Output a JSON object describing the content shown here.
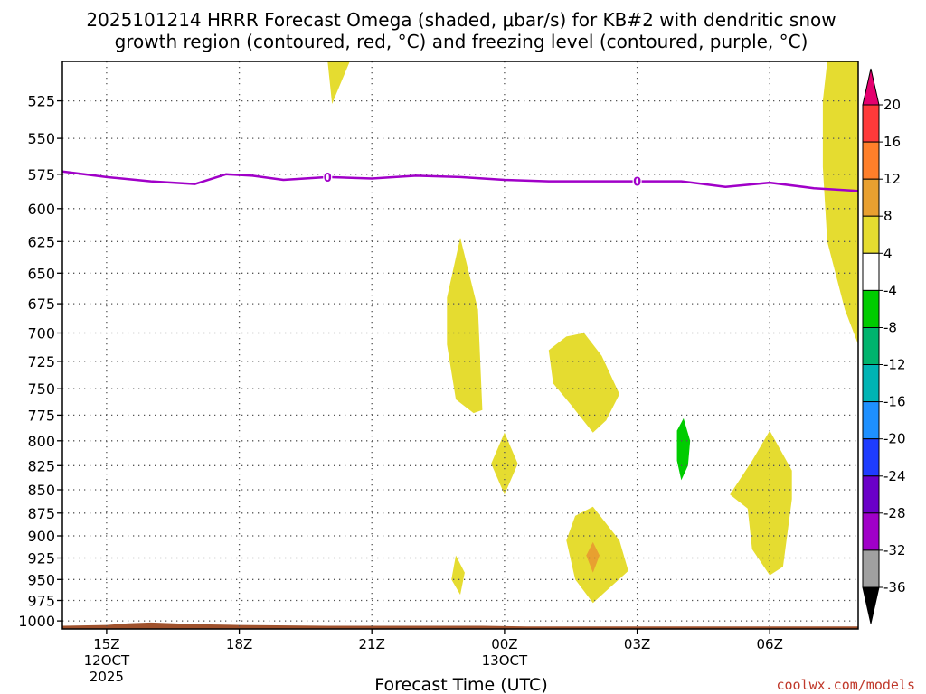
{
  "chart_data": {
    "type": "contour",
    "title_line1": "2025101214 HRRR Forecast Omega (shaded, μbar/s) for KB#2 with dendritic snow",
    "title_line2": "growth region (contoured, red, °C) and freezing level (contoured, purple, °C)",
    "xlabel": "Forecast Time (UTC)",
    "credit": "coolwx.com/models",
    "x_ticks": [
      {
        "hour": 15,
        "label": "15Z",
        "sub1": "12OCT",
        "sub2": "2025"
      },
      {
        "hour": 18,
        "label": "18Z",
        "sub1": "",
        "sub2": ""
      },
      {
        "hour": 21,
        "label": "21Z",
        "sub1": "",
        "sub2": ""
      },
      {
        "hour": 24,
        "label": "00Z",
        "sub1": "13OCT",
        "sub2": ""
      },
      {
        "hour": 27,
        "label": "03Z",
        "sub1": "",
        "sub2": ""
      },
      {
        "hour": 30,
        "label": "06Z",
        "sub1": "",
        "sub2": ""
      }
    ],
    "x_range": [
      14,
      32
    ],
    "y_ticks": [
      "525",
      "550",
      "575",
      "600",
      "625",
      "650",
      "675",
      "700",
      "725",
      "750",
      "775",
      "800",
      "825",
      "850",
      "875",
      "900",
      "925",
      "950",
      "975",
      "1000"
    ],
    "y_values": [
      525,
      550,
      575,
      600,
      625,
      650,
      675,
      700,
      725,
      750,
      775,
      800,
      825,
      850,
      875,
      900,
      925,
      950,
      975,
      1000
    ],
    "y_range_hpa": [
      500,
      1010
    ],
    "y_scale": "log-pressure",
    "grid": true,
    "colorbar": {
      "labels": [
        "20",
        "16",
        "12",
        "8",
        "4",
        "-4",
        "-8",
        "-12",
        "-16",
        "-20",
        "-24",
        "-28",
        "-32",
        "-36"
      ],
      "colors": [
        "#e4006e",
        "#ff3a3a",
        "#ff7f2a",
        "#e8a030",
        "#e5dc30",
        "#ffffff",
        "#00cc00",
        "#00b46e",
        "#00b4b4",
        "#1e90ff",
        "#1e3cff",
        "#6a00c8",
        "#a000c8",
        "#a0a0a0",
        "#000000"
      ]
    },
    "freezing_level": {
      "label": "0",
      "color": "#a000c8",
      "points": [
        [
          14.0,
          573
        ],
        [
          15.0,
          577
        ],
        [
          16.0,
          580
        ],
        [
          17.0,
          582
        ],
        [
          17.7,
          575
        ],
        [
          18.3,
          576
        ],
        [
          19.0,
          579
        ],
        [
          20.0,
          577
        ],
        [
          21.0,
          578
        ],
        [
          22.0,
          576
        ],
        [
          23.0,
          577
        ],
        [
          24.0,
          579
        ],
        [
          25.0,
          580
        ],
        [
          26.0,
          580
        ],
        [
          27.0,
          580
        ],
        [
          28.0,
          580
        ],
        [
          29.0,
          584
        ],
        [
          30.0,
          581
        ],
        [
          31.0,
          585
        ],
        [
          32.0,
          587
        ]
      ]
    },
    "label_hours": [
      20.0,
      27.0
    ],
    "omega_regions": [
      {
        "level": "4 to 8",
        "color": "#e5dc30",
        "points": [
          [
            20.0,
            500
          ],
          [
            20.5,
            500
          ],
          [
            20.1,
            527
          ]
        ]
      },
      {
        "level": "4 to 8",
        "color": "#e5dc30",
        "points": [
          [
            23.0,
            622
          ],
          [
            23.4,
            680
          ],
          [
            23.5,
            770
          ],
          [
            23.3,
            773
          ],
          [
            22.9,
            760
          ],
          [
            22.7,
            710
          ],
          [
            22.7,
            670
          ]
        ]
      },
      {
        "level": "4 to 8",
        "color": "#e5dc30",
        "points": [
          [
            25.8,
            700
          ],
          [
            26.2,
            720
          ],
          [
            26.6,
            755
          ],
          [
            26.3,
            780
          ],
          [
            26.0,
            792
          ],
          [
            25.5,
            765
          ],
          [
            25.1,
            745
          ],
          [
            25.0,
            715
          ],
          [
            25.4,
            703
          ]
        ]
      },
      {
        "level": "4 to 8",
        "color": "#e5dc30",
        "points": [
          [
            24.0,
            792
          ],
          [
            24.3,
            823
          ],
          [
            24.0,
            855
          ],
          [
            23.7,
            823
          ]
        ]
      },
      {
        "level": "4 to 8",
        "color": "#e5dc30",
        "points": [
          [
            26.0,
            868
          ],
          [
            26.6,
            905
          ],
          [
            26.8,
            940
          ],
          [
            26.0,
            978
          ],
          [
            25.6,
            950
          ],
          [
            25.4,
            905
          ],
          [
            25.6,
            878
          ]
        ]
      },
      {
        "level": "4 to 8",
        "color": "#e5dc30",
        "points": [
          [
            22.9,
            922
          ],
          [
            23.1,
            942
          ],
          [
            23.0,
            968
          ],
          [
            22.8,
            950
          ]
        ]
      },
      {
        "level": "4 to 8",
        "color": "#e5dc30",
        "points": [
          [
            30.0,
            790
          ],
          [
            30.5,
            830
          ],
          [
            30.5,
            860
          ],
          [
            30.3,
            935
          ],
          [
            30.0,
            945
          ],
          [
            29.6,
            915
          ],
          [
            29.5,
            870
          ],
          [
            29.1,
            855
          ],
          [
            29.6,
            820
          ]
        ]
      },
      {
        "level": "4 to 8",
        "color": "#e5dc30",
        "points": [
          [
            31.3,
            500
          ],
          [
            32.0,
            500
          ],
          [
            32.0,
            710
          ],
          [
            31.7,
            680
          ],
          [
            31.3,
            625
          ],
          [
            31.2,
            570
          ],
          [
            31.2,
            525
          ]
        ]
      },
      {
        "level": "8 to 12",
        "color": "#e8a030",
        "points": [
          [
            26.0,
            907
          ],
          [
            26.15,
            922
          ],
          [
            26.0,
            942
          ],
          [
            25.85,
            922
          ]
        ]
      },
      {
        "level": "-4 to -8",
        "color": "#00cc00",
        "points": [
          [
            28.05,
            778
          ],
          [
            28.2,
            800
          ],
          [
            28.15,
            825
          ],
          [
            28.0,
            840
          ],
          [
            27.9,
            820
          ],
          [
            27.9,
            790
          ]
        ]
      }
    ],
    "terrain": {
      "color": "#a0522d",
      "points": [
        [
          14.0,
          1006
        ],
        [
          15.0,
          1005
        ],
        [
          15.5,
          1003
        ],
        [
          16.0,
          1002
        ],
        [
          16.5,
          1003
        ],
        [
          17.0,
          1004
        ],
        [
          18.0,
          1005
        ],
        [
          20.0,
          1006
        ],
        [
          22.0,
          1006
        ],
        [
          23.5,
          1006
        ],
        [
          24.5,
          1007
        ],
        [
          26.0,
          1007
        ],
        [
          28.0,
          1007
        ],
        [
          30.0,
          1007
        ],
        [
          32.0,
          1007
        ]
      ]
    }
  }
}
